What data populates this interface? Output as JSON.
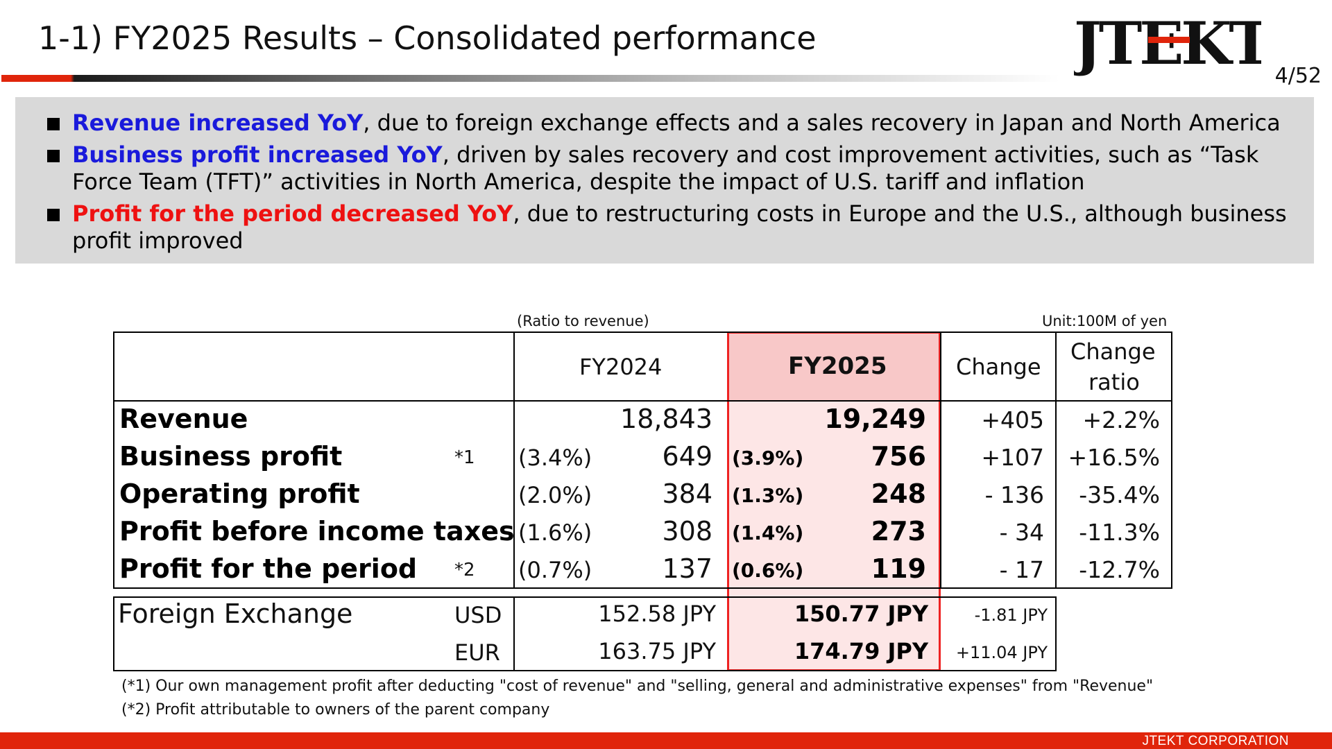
{
  "header": {
    "title": "1-1) FY2025 Results – Consolidated performance",
    "logo_text": "JTEKT",
    "page": "4/52"
  },
  "summary": {
    "bullets": [
      {
        "highlight": "Revenue increased YoY",
        "color": "blue",
        "text": ", due to foreign exchange effects and a sales recovery in Japan and North America"
      },
      {
        "highlight": "Business profit increased YoY",
        "color": "blue",
        "text": ", driven by sales recovery and cost improvement activities, such as “Task Force Team (TFT)” activities in North America, despite the impact of U.S. tariff and inflation"
      },
      {
        "highlight": "Profit for the period decreased YoY",
        "color": "red",
        "text": ", due to restructuring costs in Europe and the U.S., although business profit improved"
      }
    ]
  },
  "table": {
    "ratio_note": "(Ratio to revenue)",
    "unit_note": "Unit:100M of yen",
    "headers": {
      "fy2024": "FY2024",
      "fy2025": "FY2025",
      "change": "Change",
      "change_ratio_1": "Change",
      "change_ratio_2": "ratio"
    },
    "rows": [
      {
        "label": "Revenue",
        "note": "",
        "fy24_ratio": "",
        "fy24": "18,843",
        "fy25_ratio": "",
        "fy25": "19,249",
        "change": "+405",
        "change_ratio": "+2.2%"
      },
      {
        "label": "Business profit",
        "note": "*1",
        "fy24_ratio": "(3.4%)",
        "fy24": "649",
        "fy25_ratio": "(3.9%)",
        "fy25": "756",
        "change": "+107",
        "change_ratio": "+16.5%"
      },
      {
        "label": "Operating profit",
        "note": "",
        "fy24_ratio": "(2.0%)",
        "fy24": "384",
        "fy25_ratio": "(1.3%)",
        "fy25": "248",
        "change": "- 136",
        "change_ratio": "-35.4%"
      },
      {
        "label": "Profit before income taxes",
        "note": "",
        "fy24_ratio": "(1.6%)",
        "fy24": "308",
        "fy25_ratio": "(1.4%)",
        "fy25": "273",
        "change": "- 34",
        "change_ratio": "-11.3%"
      },
      {
        "label": "Profit for the period",
        "note": "*2",
        "fy24_ratio": "(0.7%)",
        "fy24": "137",
        "fy25_ratio": "(0.6%)",
        "fy25": "119",
        "change": "- 17",
        "change_ratio": "-12.7%"
      }
    ],
    "fx": {
      "label": "Foreign Exchange",
      "rows": [
        {
          "currency": "USD",
          "fy24": "152.58 JPY",
          "fy25": "150.77 JPY",
          "change": "-1.81 JPY"
        },
        {
          "currency": "EUR",
          "fy24": "163.75 JPY",
          "fy25": "174.79 JPY",
          "change": "+11.04 JPY"
        }
      ]
    }
  },
  "footnotes": [
    "(*1) Our own management profit after deducting \"cost of revenue\" and \"selling, general and administrative expenses\" from \"Revenue\"",
    "(*2) Profit attributable to owners of the parent company"
  ],
  "footer": {
    "company": "JTEKT  CORPORATION"
  },
  "colors": {
    "accent_red": "#e0250b",
    "highlight_blue": "#1a1adb",
    "highlight_red": "#ee1111",
    "fy2025_fill": "#fde6e6"
  }
}
